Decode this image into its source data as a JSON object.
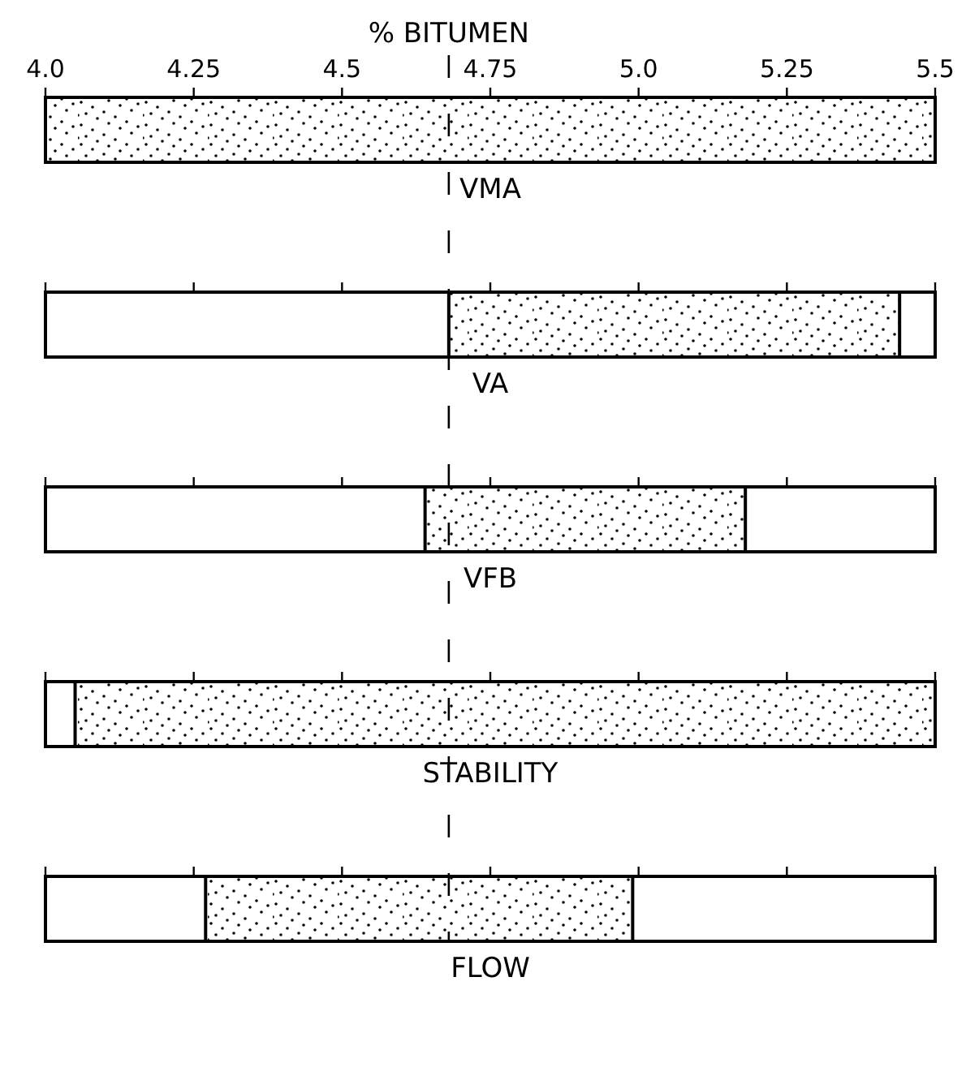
{
  "chart_data": {
    "type": "bar",
    "orientation": "horizontal",
    "xlabel": "% BITUMEN",
    "categories": [
      "VMA",
      "VA",
      "VFB",
      "STABILITY",
      "FLOW"
    ],
    "base": [
      4.0,
      4.68,
      4.64,
      4.05,
      4.27
    ],
    "values": [
      1.5,
      0.76,
      0.54,
      1.45,
      0.72
    ],
    "color": "#000000",
    "xlim": [
      4.0,
      5.5
    ],
    "xticks": [
      {
        "value": 4.0,
        "label": "4.0"
      },
      4.25,
      4.5,
      4.75,
      {
        "value": 5.0,
        "label": "5.0"
      },
      5.25,
      5.5
    ],
    "ref_lines": [
      {
        "axis": "x",
        "value": 4.68,
        "line_style": "dashed",
        "color": "#000000"
      }
    ]
  }
}
